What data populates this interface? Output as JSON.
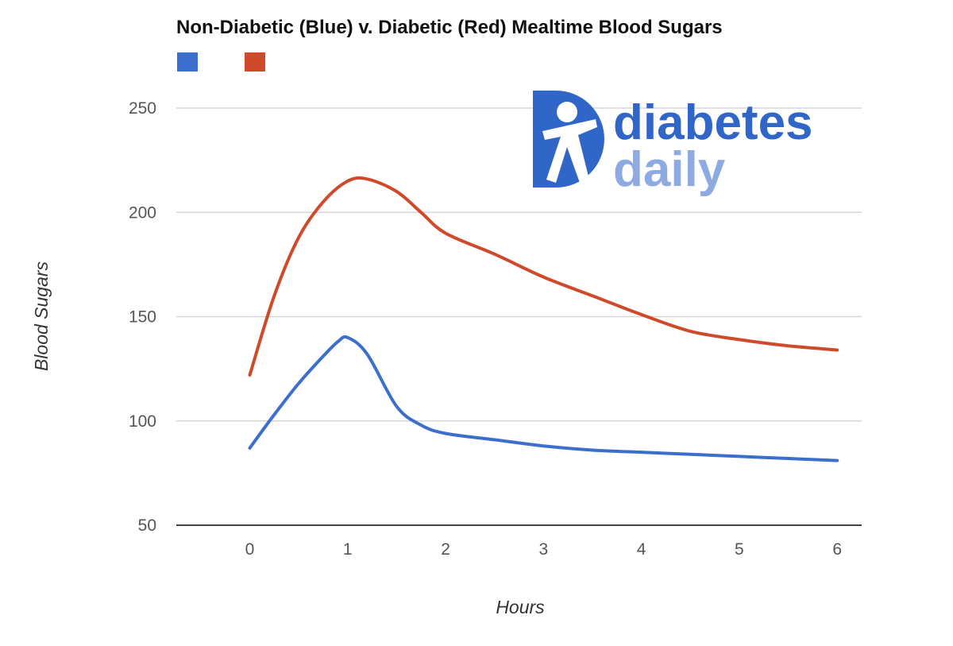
{
  "chart_data": {
    "type": "line",
    "title": "Non-Diabetic (Blue) v. Diabetic (Red) Mealtime Blood Sugars",
    "xlabel": "Hours",
    "ylabel": "Blood Sugars",
    "x_ticks": [
      "0",
      "1",
      "2",
      "3",
      "4",
      "5",
      "6"
    ],
    "y_ticks": [
      "50",
      "100",
      "150",
      "200",
      "250"
    ],
    "xlim": [
      -0.75,
      6.25
    ],
    "ylim": [
      50,
      250
    ],
    "grid": true,
    "legend": "top-left",
    "series": [
      {
        "color": "#3b6fcb",
        "x": [
          0,
          0.25,
          0.5,
          0.75,
          0.9,
          1.0,
          1.2,
          1.5,
          1.75,
          2.0,
          2.5,
          3.0,
          3.5,
          4.0,
          4.5,
          5.0,
          5.5,
          6.0
        ],
        "values": [
          87,
          103,
          118,
          131,
          138,
          140,
          132,
          107,
          98,
          94,
          91,
          88,
          86,
          85,
          84,
          83,
          82,
          81
        ]
      },
      {
        "color": "#cf4a2a",
        "x": [
          0,
          0.25,
          0.5,
          0.75,
          1.0,
          1.2,
          1.5,
          1.75,
          2.0,
          2.5,
          3.0,
          3.5,
          4.0,
          4.5,
          5.0,
          5.5,
          6.0
        ],
        "values": [
          122,
          160,
          188,
          205,
          215,
          216,
          210,
          200,
          190,
          180,
          169,
          160,
          151,
          143,
          139,
          136,
          134
        ]
      }
    ]
  },
  "logo": {
    "line1": "diabetes",
    "line2": "daily",
    "primary_color": "#2f66c7",
    "secondary_color": "#8eaae3"
  }
}
